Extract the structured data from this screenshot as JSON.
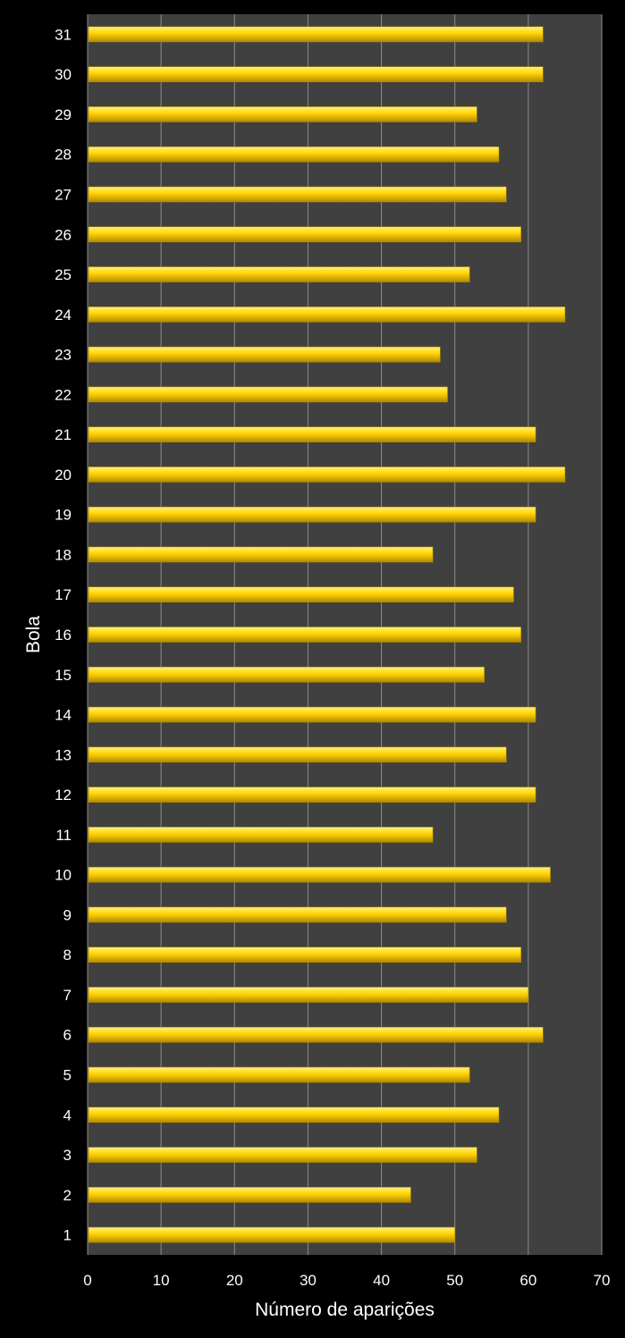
{
  "chart_data": {
    "type": "bar",
    "orientation": "horizontal",
    "title": "",
    "xlabel": "Número de aparições",
    "ylabel": "Bola",
    "xlim": [
      0,
      70
    ],
    "x_ticks": [
      "0",
      "10",
      "20",
      "30",
      "40",
      "50",
      "60",
      "70"
    ],
    "grid": true,
    "categories": [
      "1",
      "2",
      "3",
      "4",
      "5",
      "6",
      "7",
      "8",
      "9",
      "10",
      "11",
      "12",
      "13",
      "14",
      "15",
      "16",
      "17",
      "18",
      "19",
      "20",
      "21",
      "22",
      "23",
      "24",
      "25",
      "26",
      "27",
      "28",
      "29",
      "30",
      "31"
    ],
    "values": [
      50,
      44,
      53,
      56,
      52,
      62,
      60,
      59,
      57,
      63,
      47,
      61,
      57,
      61,
      54,
      59,
      58,
      47,
      61,
      65,
      61,
      49,
      48,
      65,
      52,
      59,
      57,
      56,
      53,
      62,
      62
    ],
    "colors": {
      "page_background": "#000000",
      "plot_background": "#404040",
      "gridline": "#8c8c8c",
      "bar_light": "#fff27a",
      "bar_main": "#ffd200",
      "bar_dark": "#b38a00",
      "text": "#ffffff"
    }
  }
}
